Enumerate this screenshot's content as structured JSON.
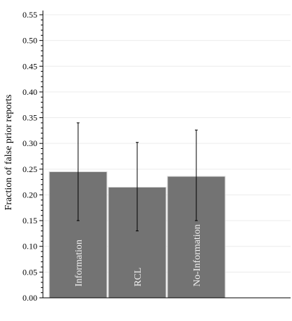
{
  "chart_data": {
    "type": "bar",
    "categories": [
      "Information",
      "RCL",
      "No-Information"
    ],
    "values": [
      0.245,
      0.215,
      0.236
    ],
    "error_low": [
      0.15,
      0.13,
      0.15
    ],
    "error_high": [
      0.34,
      0.302,
      0.326
    ],
    "title": "",
    "xlabel": "",
    "ylabel": "Fraction of false prior reports",
    "ylim": [
      0,
      0.55
    ],
    "yticks": [
      "0.00",
      "0.05",
      "0.10",
      "0.15",
      "0.20",
      "0.25",
      "0.30",
      "0.35",
      "0.40",
      "0.45",
      "0.50",
      "0.55"
    ],
    "grid": true,
    "colors": {
      "bar": "#737373",
      "bar_label": "#f2f2f2",
      "grid": "#ececec"
    }
  }
}
